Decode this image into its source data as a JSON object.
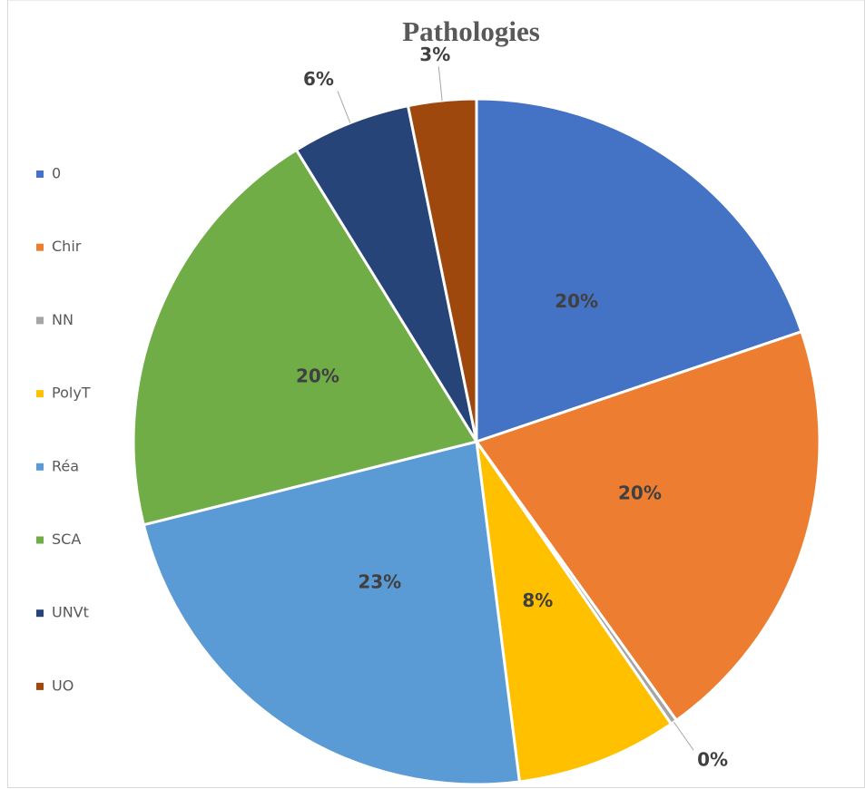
{
  "chart_data": {
    "type": "pie",
    "title": "Pathologies",
    "categories": [
      "0",
      "Chir",
      "NN",
      "PolyT",
      "Réa",
      "SCA",
      "UNVt",
      "UO"
    ],
    "values": [
      19.8,
      20.3,
      0.3,
      7.6,
      23.1,
      20.1,
      5.6,
      3.2
    ],
    "value_labels": [
      "20%",
      "20%",
      "0%",
      "8%",
      "23%",
      "20%",
      "6%",
      "3%"
    ],
    "colors": [
      "#4472c4",
      "#ed7d31",
      "#a5a5a5",
      "#ffc000",
      "#5b9bd5",
      "#70ad47",
      "#264478",
      "#9e480e"
    ],
    "legend": "left"
  }
}
